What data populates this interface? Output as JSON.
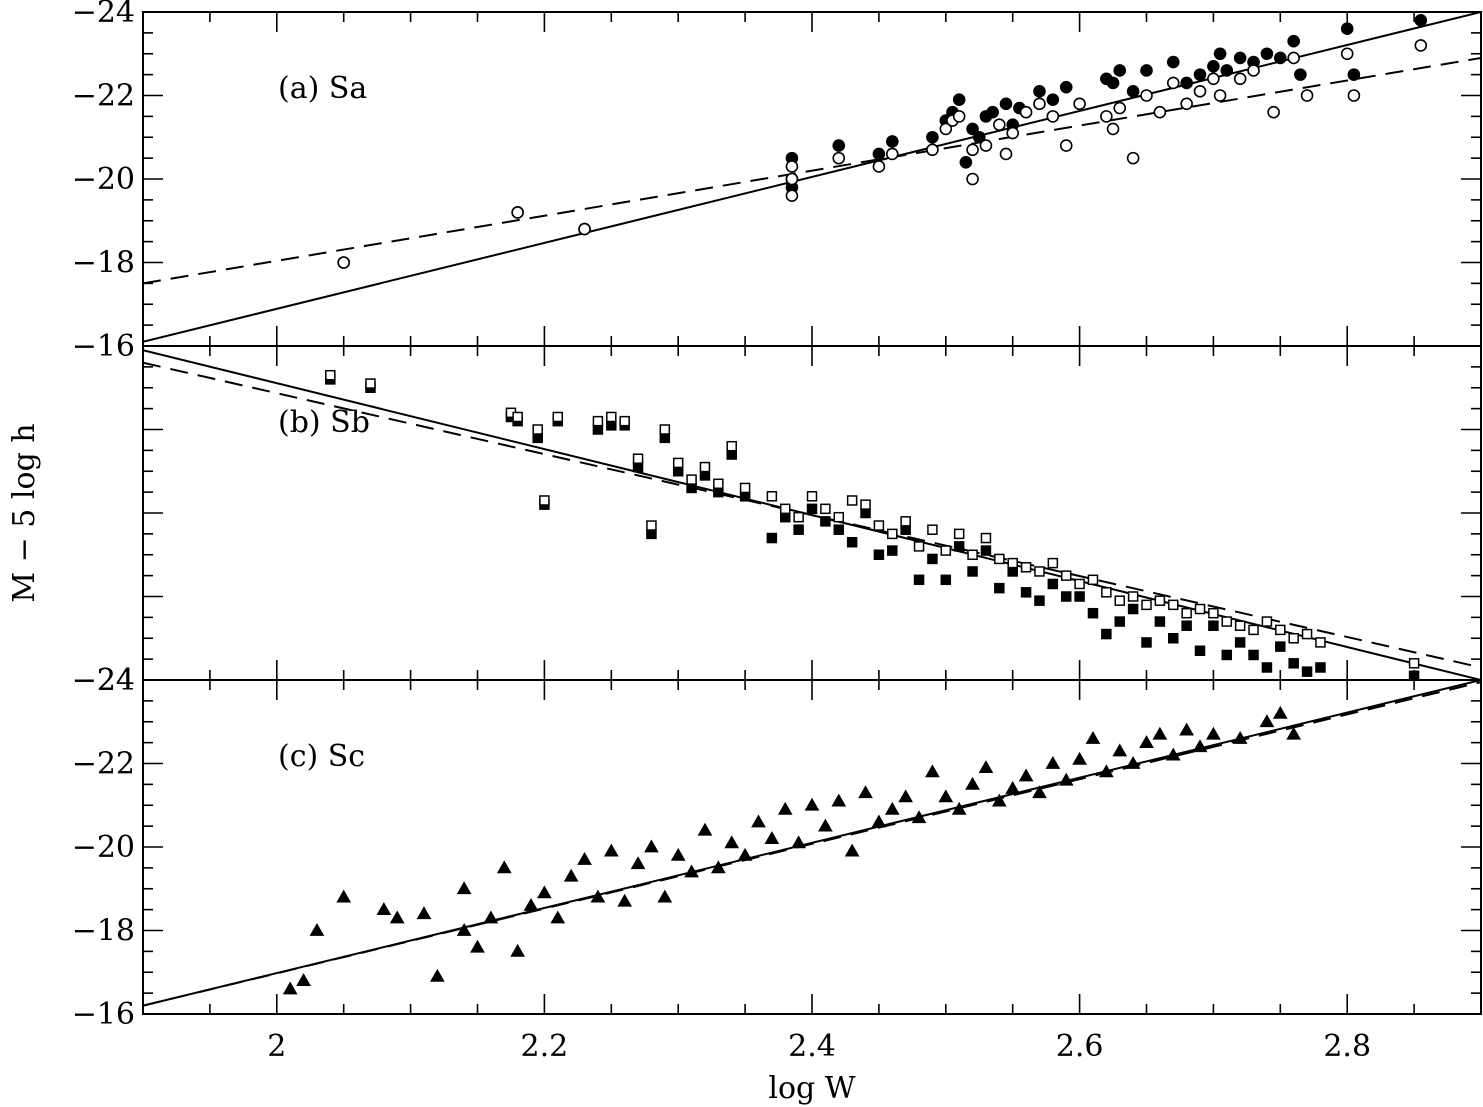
{
  "chart_data": {
    "type": "scatter",
    "xlabel": "log W",
    "ylabel": "M − 5 log h",
    "xlim": [
      1.9,
      2.9
    ],
    "x_ticks": [
      "2",
      "2.2",
      "2.4",
      "2.6",
      "2.8"
    ],
    "colors": {
      "axes": "#000000",
      "marker": "#000000",
      "background": "#ffffff"
    },
    "panels": [
      {
        "label": "(a) Sa",
        "ylim": [
          -16,
          -24
        ],
        "y_ticks": [
          "-16",
          "-18",
          "-20",
          "-22",
          "-24"
        ],
        "marker": "circle",
        "fits": [
          {
            "style": "solid",
            "x": [
              1.9,
              2.9
            ],
            "y": [
              -16.1,
              -24.0
            ]
          },
          {
            "style": "dashed",
            "x": [
              1.9,
              2.9
            ],
            "y": [
              -17.5,
              -22.9
            ]
          }
        ],
        "series": [
          {
            "name": "filled",
            "filled": true,
            "x": [
              2.05,
              2.18,
              2.23,
              2.385,
              2.385,
              2.385,
              2.42,
              2.45,
              2.46,
              2.49,
              2.5,
              2.505,
              2.51,
              2.515,
              2.52,
              2.525,
              2.53,
              2.535,
              2.545,
              2.55,
              2.555,
              2.57,
              2.58,
              2.59,
              2.62,
              2.625,
              2.63,
              2.64,
              2.65,
              2.67,
              2.68,
              2.69,
              2.7,
              2.705,
              2.71,
              2.72,
              2.73,
              2.74,
              2.75,
              2.76,
              2.765,
              2.8,
              2.805,
              2.855
            ],
            "y": [
              -18.0,
              -19.2,
              -18.8,
              -20.5,
              -20.0,
              -19.8,
              -20.8,
              -20.6,
              -20.9,
              -21.0,
              -21.4,
              -21.6,
              -21.9,
              -20.4,
              -21.2,
              -21.0,
              -21.5,
              -21.6,
              -21.8,
              -21.3,
              -21.7,
              -22.1,
              -21.9,
              -22.2,
              -22.4,
              -22.3,
              -22.6,
              -22.1,
              -22.6,
              -22.8,
              -22.3,
              -22.5,
              -22.7,
              -23.0,
              -22.6,
              -22.9,
              -22.8,
              -23.0,
              -22.9,
              -23.3,
              -22.5,
              -23.6,
              -22.5,
              -23.8
            ]
          },
          {
            "name": "open",
            "filled": false,
            "x": [
              2.05,
              2.18,
              2.23,
              2.385,
              2.385,
              2.385,
              2.42,
              2.45,
              2.46,
              2.49,
              2.5,
              2.505,
              2.51,
              2.52,
              2.52,
              2.53,
              2.54,
              2.545,
              2.55,
              2.56,
              2.57,
              2.58,
              2.59,
              2.6,
              2.62,
              2.625,
              2.63,
              2.64,
              2.65,
              2.66,
              2.67,
              2.68,
              2.69,
              2.7,
              2.705,
              2.72,
              2.73,
              2.745,
              2.76,
              2.77,
              2.8,
              2.805,
              2.855
            ],
            "y": [
              -18.0,
              -19.2,
              -18.8,
              -20.3,
              -20.0,
              -19.6,
              -20.5,
              -20.3,
              -20.6,
              -20.7,
              -21.2,
              -21.4,
              -21.5,
              -20.0,
              -20.7,
              -20.8,
              -21.3,
              -20.6,
              -21.1,
              -21.6,
              -21.8,
              -21.5,
              -20.8,
              -21.8,
              -21.5,
              -21.2,
              -21.7,
              -20.5,
              -22.0,
              -21.6,
              -22.3,
              -21.8,
              -22.1,
              -22.4,
              -22.0,
              -22.4,
              -22.6,
              -21.6,
              -22.9,
              -22.0,
              -23.0,
              -22.0,
              -23.2
            ]
          }
        ]
      },
      {
        "label": "(b) Sb",
        "ylim": [
          -24,
          -16
        ],
        "y_ticks": [
          "-24",
          "",
          "",
          "",
          ""
        ],
        "marker": "square",
        "fits": [
          {
            "style": "solid",
            "x": [
              1.9,
              2.9
            ],
            "y": [
              -16.1,
              -24.0
            ]
          },
          {
            "style": "dashed",
            "x": [
              1.9,
              2.9
            ],
            "y": [
              -16.4,
              -23.7
            ]
          }
        ],
        "series": [
          {
            "name": "filled",
            "filled": true,
            "x": [
              2.04,
              2.07,
              2.175,
              2.18,
              2.195,
              2.2,
              2.21,
              2.24,
              2.25,
              2.26,
              2.27,
              2.28,
              2.29,
              2.3,
              2.31,
              2.32,
              2.33,
              2.34,
              2.35,
              2.37,
              2.38,
              2.39,
              2.4,
              2.41,
              2.42,
              2.43,
              2.44,
              2.45,
              2.46,
              2.47,
              2.48,
              2.49,
              2.5,
              2.51,
              2.52,
              2.53,
              2.54,
              2.55,
              2.56,
              2.57,
              2.58,
              2.59,
              2.6,
              2.61,
              2.62,
              2.63,
              2.64,
              2.65,
              2.66,
              2.67,
              2.68,
              2.69,
              2.7,
              2.71,
              2.72,
              2.73,
              2.74,
              2.75,
              2.76,
              2.77,
              2.78,
              2.85
            ],
            "y": [
              -16.8,
              -17.0,
              -17.7,
              -17.8,
              -18.2,
              -19.8,
              -17.8,
              -18.0,
              -17.9,
              -17.9,
              -18.9,
              -20.5,
              -18.2,
              -19.0,
              -19.4,
              -19.1,
              -19.5,
              -18.6,
              -19.6,
              -20.6,
              -20.1,
              -20.4,
              -19.9,
              -20.2,
              -20.4,
              -20.7,
              -20.0,
              -21.0,
              -20.9,
              -20.4,
              -21.6,
              -21.1,
              -21.6,
              -20.8,
              -21.4,
              -20.9,
              -21.8,
              -21.4,
              -21.9,
              -22.1,
              -21.7,
              -22.0,
              -22.0,
              -22.4,
              -22.9,
              -22.6,
              -22.3,
              -23.1,
              -22.6,
              -23.0,
              -22.7,
              -23.3,
              -22.7,
              -23.4,
              -23.1,
              -23.4,
              -23.7,
              -23.2,
              -23.6,
              -23.8,
              -23.7,
              -23.9
            ]
          },
          {
            "name": "open",
            "filled": false,
            "x": [
              2.04,
              2.07,
              2.175,
              2.18,
              2.195,
              2.2,
              2.21,
              2.24,
              2.25,
              2.26,
              2.27,
              2.28,
              2.29,
              2.3,
              2.31,
              2.32,
              2.33,
              2.34,
              2.35,
              2.37,
              2.38,
              2.39,
              2.4,
              2.41,
              2.42,
              2.43,
              2.44,
              2.45,
              2.46,
              2.47,
              2.48,
              2.49,
              2.5,
              2.51,
              2.52,
              2.53,
              2.54,
              2.55,
              2.56,
              2.57,
              2.58,
              2.59,
              2.6,
              2.61,
              2.62,
              2.63,
              2.64,
              2.65,
              2.66,
              2.67,
              2.68,
              2.69,
              2.7,
              2.71,
              2.72,
              2.73,
              2.74,
              2.75,
              2.76,
              2.77,
              2.78,
              2.85
            ],
            "y": [
              -16.7,
              -16.9,
              -17.6,
              -17.7,
              -18.0,
              -19.7,
              -17.7,
              -17.8,
              -17.7,
              -17.8,
              -18.7,
              -20.3,
              -18.0,
              -18.8,
              -19.2,
              -18.9,
              -19.3,
              -18.4,
              -19.4,
              -19.6,
              -19.9,
              -20.1,
              -19.6,
              -19.9,
              -20.1,
              -19.7,
              -19.8,
              -20.3,
              -20.5,
              -20.2,
              -20.8,
              -20.4,
              -20.9,
              -20.5,
              -21.0,
              -20.6,
              -21.1,
              -21.2,
              -21.3,
              -21.4,
              -21.2,
              -21.5,
              -21.7,
              -21.6,
              -21.9,
              -22.1,
              -22.0,
              -22.2,
              -22.1,
              -22.2,
              -22.4,
              -22.3,
              -22.4,
              -22.6,
              -22.7,
              -22.8,
              -22.6,
              -22.8,
              -23.0,
              -22.9,
              -23.1,
              -23.6
            ]
          }
        ]
      },
      {
        "label": "(c) Sc",
        "ylim": [
          -16,
          -24
        ],
        "y_ticks": [
          "-16",
          "-18",
          "-20",
          "-22",
          "-24"
        ],
        "marker": "triangle",
        "fits": [
          {
            "style": "solid",
            "x": [
              1.9,
              2.9
            ],
            "y": [
              -16.2,
              -24.0
            ]
          },
          {
            "style": "dashed",
            "x": [
              1.9,
              2.9
            ],
            "y": [
              -16.2,
              -23.95
            ]
          }
        ],
        "series": [
          {
            "name": "filled",
            "filled": true,
            "x": [
              2.01,
              2.02,
              2.03,
              2.05,
              2.08,
              2.09,
              2.11,
              2.12,
              2.14,
              2.14,
              2.15,
              2.16,
              2.17,
              2.18,
              2.19,
              2.2,
              2.21,
              2.22,
              2.23,
              2.24,
              2.25,
              2.26,
              2.27,
              2.28,
              2.29,
              2.3,
              2.31,
              2.32,
              2.33,
              2.34,
              2.35,
              2.36,
              2.37,
              2.38,
              2.39,
              2.4,
              2.41,
              2.42,
              2.43,
              2.44,
              2.45,
              2.46,
              2.47,
              2.48,
              2.49,
              2.5,
              2.51,
              2.52,
              2.53,
              2.54,
              2.55,
              2.56,
              2.57,
              2.58,
              2.59,
              2.6,
              2.61,
              2.62,
              2.63,
              2.64,
              2.65,
              2.66,
              2.67,
              2.68,
              2.69,
              2.7,
              2.72,
              2.74,
              2.75,
              2.76
            ],
            "y": [
              -16.6,
              -16.8,
              -18.0,
              -18.8,
              -18.5,
              -18.3,
              -18.4,
              -16.9,
              -19.0,
              -18.0,
              -17.6,
              -18.3,
              -19.5,
              -17.5,
              -18.6,
              -18.9,
              -18.3,
              -19.3,
              -19.7,
              -18.8,
              -19.9,
              -18.7,
              -19.6,
              -20.0,
              -18.8,
              -19.8,
              -19.4,
              -20.4,
              -19.5,
              -20.1,
              -19.8,
              -20.6,
              -20.2,
              -20.9,
              -20.1,
              -21.0,
              -20.5,
              -21.1,
              -19.9,
              -21.3,
              -20.6,
              -20.9,
              -21.2,
              -20.7,
              -21.8,
              -21.2,
              -20.9,
              -21.5,
              -21.9,
              -21.1,
              -21.4,
              -21.7,
              -21.3,
              -22.0,
              -21.6,
              -22.1,
              -22.6,
              -21.8,
              -22.3,
              -22.0,
              -22.5,
              -22.7,
              -22.2,
              -22.8,
              -22.4,
              -22.7,
              -22.6,
              -23.0,
              -23.2,
              -22.7
            ]
          }
        ]
      }
    ]
  }
}
